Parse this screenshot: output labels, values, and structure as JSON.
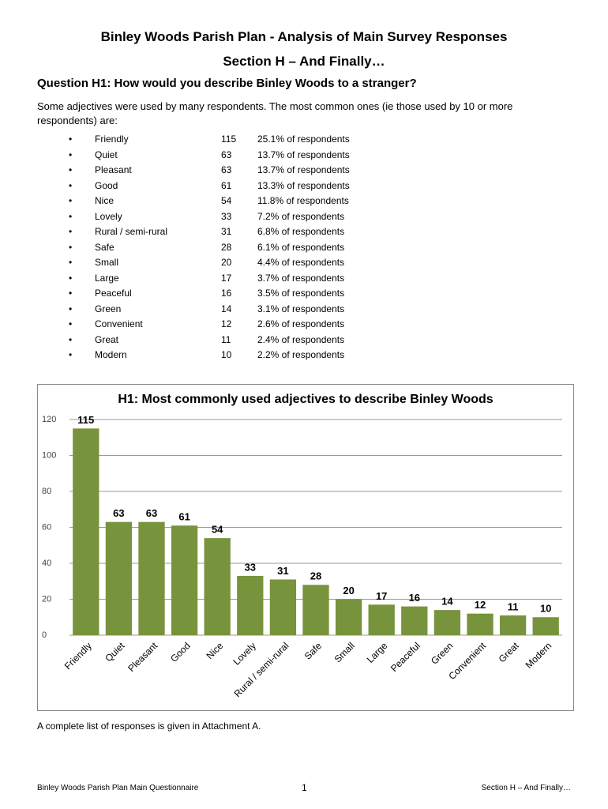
{
  "header": {
    "title": "Binley Woods Parish Plan - Analysis of Main Survey Responses",
    "section": "Section H – And Finally…"
  },
  "question": "Question H1: How would you describe Binley Woods to a stranger?",
  "intro": "Some adjectives were used by many respondents. The most common ones (ie those used by 10 or more respondents) are:",
  "list": [
    {
      "word": "Friendly",
      "count": 115,
      "share": "25.1% of respondents"
    },
    {
      "word": "Quiet",
      "count": 63,
      "share": "13.7% of respondents"
    },
    {
      "word": "Pleasant",
      "count": 63,
      "share": "13.7% of respondents"
    },
    {
      "word": "Good",
      "count": 61,
      "share": "13.3% of respondents"
    },
    {
      "word": "Nice",
      "count": 54,
      "share": "11.8% of respondents"
    },
    {
      "word": "Lovely",
      "count": 33,
      "share": "7.2% of respondents"
    },
    {
      "word": "Rural / semi-rural",
      "count": 31,
      "share": "6.8% of respondents"
    },
    {
      "word": "Safe",
      "count": 28,
      "share": "6.1% of respondents"
    },
    {
      "word": "Small",
      "count": 20,
      "share": "4.4% of respondents"
    },
    {
      "word": "Large",
      "count": 17,
      "share": "3.7% of respondents"
    },
    {
      "word": "Peaceful",
      "count": 16,
      "share": "3.5% of respondents"
    },
    {
      "word": "Green",
      "count": 14,
      "share": "3.1% of respondents"
    },
    {
      "word": "Convenient",
      "count": 12,
      "share": "2.6% of respondents"
    },
    {
      "word": "Great",
      "count": 11,
      "share": "2.4% of respondents"
    },
    {
      "word": "Modern",
      "count": 10,
      "share": "2.2% of respondents"
    }
  ],
  "chart_data": {
    "type": "bar",
    "title": "H1: Most commonly used adjectives to describe Binley Woods",
    "categories": [
      "Friendly",
      "Quiet",
      "Pleasant",
      "Good",
      "Nice",
      "Lovely",
      "Rural / semi-rural",
      "Safe",
      "Small",
      "Large",
      "Peaceful",
      "Green",
      "Convenient",
      "Great",
      "Modern"
    ],
    "values": [
      115,
      63,
      63,
      61,
      54,
      33,
      31,
      28,
      20,
      17,
      16,
      14,
      12,
      11,
      10
    ],
    "color": "#77933c",
    "ylim": [
      0,
      120
    ],
    "yticks": [
      0,
      20,
      40,
      60,
      80,
      100,
      120
    ],
    "grid": true
  },
  "note": "A complete list of responses is given in Attachment A.",
  "footer": {
    "left": "Binley Woods Parish Plan Main Questionnaire",
    "page": "1",
    "right": "Section H – And Finally…"
  }
}
